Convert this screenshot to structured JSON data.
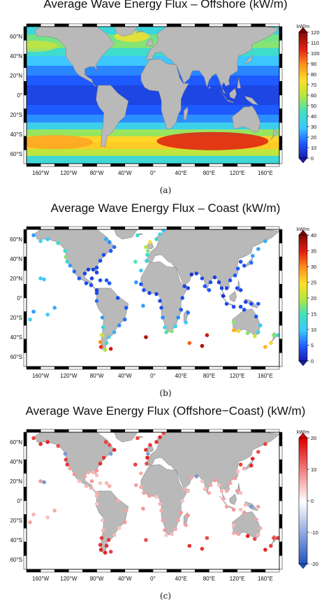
{
  "panels": [
    {
      "title": "Average Wave Energy Flux – Offshore (kW/m)",
      "caption": "(a)",
      "unit": "kW/m",
      "colorbar_ticks": [
        "0",
        "10",
        "20",
        "30",
        "40",
        "50",
        "60",
        "70",
        "80",
        "90",
        "100",
        "110",
        "120"
      ],
      "scale": "diverging-none",
      "colors": {
        "low": "#1a1aa8",
        "mid": "#40e0c0",
        "high": "#c80000"
      }
    },
    {
      "title": "Average Wave Energy Flux – Coast (kW/m)",
      "caption": "(b)",
      "unit": "kW/m",
      "colorbar_ticks": [
        "0",
        "5",
        "10",
        "15",
        "20",
        "25",
        "30",
        "35",
        "40"
      ],
      "scale": "jet",
      "colors": {
        "low": "#1a1aa8",
        "mid": "#40e0c0",
        "high": "#c80000"
      }
    },
    {
      "title": "Average Wave Energy Flux (Offshore−Coast) (kW/m)",
      "caption": "(c)",
      "unit": "kW/m",
      "colorbar_ticks": [
        "-20",
        "-10",
        "0",
        "10",
        "20"
      ],
      "scale": "diverging",
      "colors": {
        "low": "#2050c0",
        "mid": "#ffffff",
        "high": "#e00000"
      }
    }
  ],
  "lat_labels": [
    "60°N",
    "40°N",
    "20°N",
    "0°",
    "20°S",
    "40°S",
    "60°S"
  ],
  "lon_labels": [
    "160°W",
    "120°W",
    "80°W",
    "40°W",
    "0°",
    "40°E",
    "80°E",
    "120°E",
    "160°E"
  ],
  "land_color": "#b9b9b9"
}
